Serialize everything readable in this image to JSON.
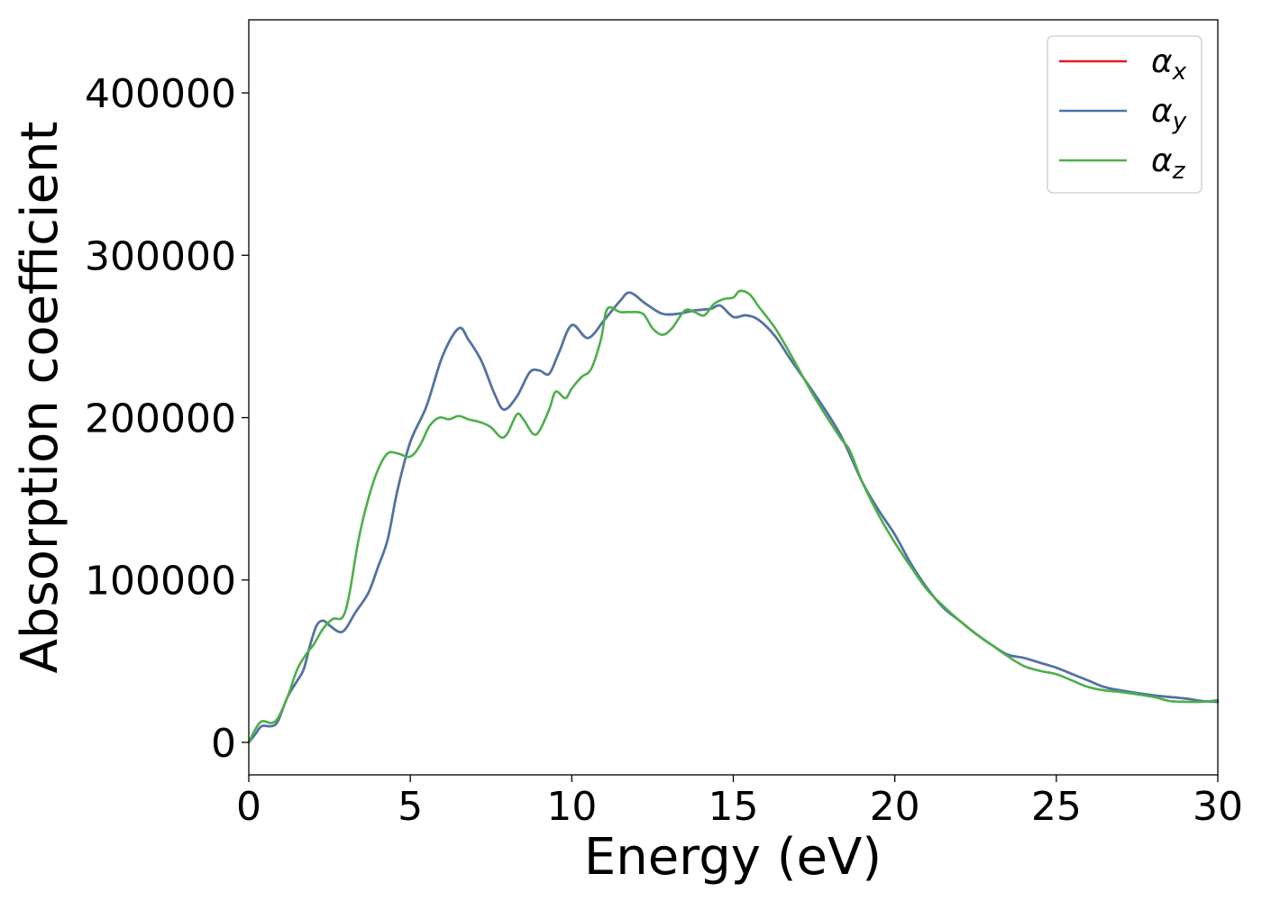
{
  "chart_data": {
    "type": "line",
    "xlabel": "Energy (eV)",
    "ylabel": "Absorption coefficient",
    "xlim": [
      0,
      30
    ],
    "ylim": [
      -20000,
      445000
    ],
    "xticks": [
      0,
      5,
      10,
      15,
      20,
      25,
      30
    ],
    "yticks": [
      0,
      100000,
      200000,
      300000,
      400000
    ],
    "grid": false,
    "legend_position": "top-right",
    "series": [
      {
        "name": "α_x",
        "label_base": "α",
        "label_sub": "x",
        "color": "#e41a1c",
        "points": [
          [
            0,
            0
          ],
          [
            0.2,
            5000
          ],
          [
            0.4,
            10000
          ],
          [
            0.7,
            10000
          ],
          [
            0.9,
            13000
          ],
          [
            1.2,
            28000
          ],
          [
            1.5,
            38000
          ],
          [
            1.7,
            45000
          ],
          [
            1.9,
            60000
          ],
          [
            2.1,
            72000
          ],
          [
            2.3,
            75000
          ],
          [
            2.5,
            72000
          ],
          [
            2.8,
            68000
          ],
          [
            3.0,
            70000
          ],
          [
            3.3,
            80000
          ],
          [
            3.7,
            92000
          ],
          [
            4.0,
            108000
          ],
          [
            4.3,
            125000
          ],
          [
            4.6,
            155000
          ],
          [
            5.0,
            185000
          ],
          [
            5.5,
            207000
          ],
          [
            6.0,
            238000
          ],
          [
            6.5,
            255000
          ],
          [
            6.8,
            248000
          ],
          [
            7.2,
            235000
          ],
          [
            7.6,
            215000
          ],
          [
            7.9,
            205000
          ],
          [
            8.3,
            213000
          ],
          [
            8.7,
            228000
          ],
          [
            9.0,
            229000
          ],
          [
            9.3,
            227000
          ],
          [
            9.6,
            240000
          ],
          [
            10.0,
            257000
          ],
          [
            10.5,
            249000
          ],
          [
            11.0,
            260000
          ],
          [
            11.5,
            272000
          ],
          [
            11.8,
            277000
          ],
          [
            12.3,
            270000
          ],
          [
            12.8,
            264000
          ],
          [
            13.3,
            264000
          ],
          [
            13.8,
            266000
          ],
          [
            14.3,
            267000
          ],
          [
            14.6,
            269000
          ],
          [
            15.0,
            262000
          ],
          [
            15.4,
            263000
          ],
          [
            15.8,
            260000
          ],
          [
            16.3,
            250000
          ],
          [
            16.8,
            235000
          ],
          [
            17.5,
            215000
          ],
          [
            18.3,
            190000
          ],
          [
            19.0,
            160000
          ],
          [
            19.5,
            143000
          ],
          [
            20.0,
            128000
          ],
          [
            20.5,
            110000
          ],
          [
            21.0,
            95000
          ],
          [
            21.5,
            83000
          ],
          [
            22.0,
            75000
          ],
          [
            22.5,
            67000
          ],
          [
            23.0,
            60000
          ],
          [
            23.5,
            54000
          ],
          [
            24.0,
            52000
          ],
          [
            24.5,
            49000
          ],
          [
            25.0,
            46000
          ],
          [
            25.5,
            42000
          ],
          [
            26.0,
            38000
          ],
          [
            26.5,
            34000
          ],
          [
            27.0,
            32000
          ],
          [
            28.0,
            29000
          ],
          [
            29.0,
            27000
          ],
          [
            29.5,
            25500
          ],
          [
            30.0,
            25000
          ]
        ]
      },
      {
        "name": "α_y",
        "label_base": "α",
        "label_sub": "y",
        "color": "#4a76a8",
        "points": [
          [
            0,
            0
          ],
          [
            0.2,
            5000
          ],
          [
            0.4,
            10000
          ],
          [
            0.7,
            10000
          ],
          [
            0.9,
            13000
          ],
          [
            1.2,
            28000
          ],
          [
            1.5,
            38000
          ],
          [
            1.7,
            45000
          ],
          [
            1.9,
            60000
          ],
          [
            2.1,
            72000
          ],
          [
            2.3,
            75000
          ],
          [
            2.5,
            72000
          ],
          [
            2.8,
            68000
          ],
          [
            3.0,
            70000
          ],
          [
            3.3,
            80000
          ],
          [
            3.7,
            92000
          ],
          [
            4.0,
            108000
          ],
          [
            4.3,
            125000
          ],
          [
            4.6,
            155000
          ],
          [
            5.0,
            185000
          ],
          [
            5.5,
            207000
          ],
          [
            6.0,
            238000
          ],
          [
            6.5,
            255000
          ],
          [
            6.8,
            248000
          ],
          [
            7.2,
            235000
          ],
          [
            7.6,
            215000
          ],
          [
            7.9,
            205000
          ],
          [
            8.3,
            213000
          ],
          [
            8.7,
            228000
          ],
          [
            9.0,
            229000
          ],
          [
            9.3,
            227000
          ],
          [
            9.6,
            240000
          ],
          [
            10.0,
            257000
          ],
          [
            10.5,
            249000
          ],
          [
            11.0,
            260000
          ],
          [
            11.5,
            272000
          ],
          [
            11.8,
            277000
          ],
          [
            12.3,
            270000
          ],
          [
            12.8,
            264000
          ],
          [
            13.3,
            264000
          ],
          [
            13.8,
            266000
          ],
          [
            14.3,
            267000
          ],
          [
            14.6,
            269000
          ],
          [
            15.0,
            262000
          ],
          [
            15.4,
            263000
          ],
          [
            15.8,
            260000
          ],
          [
            16.3,
            250000
          ],
          [
            16.8,
            235000
          ],
          [
            17.5,
            215000
          ],
          [
            18.3,
            190000
          ],
          [
            19.0,
            160000
          ],
          [
            19.5,
            143000
          ],
          [
            20.0,
            128000
          ],
          [
            20.5,
            110000
          ],
          [
            21.0,
            95000
          ],
          [
            21.5,
            83000
          ],
          [
            22.0,
            75000
          ],
          [
            22.5,
            67000
          ],
          [
            23.0,
            60000
          ],
          [
            23.5,
            54000
          ],
          [
            24.0,
            52000
          ],
          [
            24.5,
            49000
          ],
          [
            25.0,
            46000
          ],
          [
            25.5,
            42000
          ],
          [
            26.0,
            38000
          ],
          [
            26.5,
            34000
          ],
          [
            27.0,
            32000
          ],
          [
            28.0,
            29000
          ],
          [
            29.0,
            27000
          ],
          [
            29.5,
            25500
          ],
          [
            30.0,
            25000
          ]
        ]
      },
      {
        "name": "α_z",
        "label_base": "α",
        "label_sub": "z",
        "color": "#4daf4a",
        "points": [
          [
            0,
            0
          ],
          [
            0.2,
            8000
          ],
          [
            0.4,
            13000
          ],
          [
            0.7,
            12000
          ],
          [
            0.9,
            15000
          ],
          [
            1.2,
            28000
          ],
          [
            1.5,
            45000
          ],
          [
            1.8,
            55000
          ],
          [
            2.0,
            60000
          ],
          [
            2.3,
            70000
          ],
          [
            2.6,
            76000
          ],
          [
            2.9,
            77000
          ],
          [
            3.1,
            90000
          ],
          [
            3.4,
            125000
          ],
          [
            3.7,
            150000
          ],
          [
            4.0,
            168000
          ],
          [
            4.3,
            178000
          ],
          [
            4.6,
            178000
          ],
          [
            5.0,
            176000
          ],
          [
            5.3,
            183000
          ],
          [
            5.6,
            195000
          ],
          [
            5.9,
            200000
          ],
          [
            6.2,
            199000
          ],
          [
            6.5,
            201000
          ],
          [
            6.8,
            199000
          ],
          [
            7.2,
            197000
          ],
          [
            7.5,
            194000
          ],
          [
            7.8,
            188000
          ],
          [
            8.0,
            190000
          ],
          [
            8.3,
            202000
          ],
          [
            8.5,
            199000
          ],
          [
            8.8,
            190000
          ],
          [
            9.0,
            192000
          ],
          [
            9.3,
            205000
          ],
          [
            9.5,
            216000
          ],
          [
            9.8,
            212000
          ],
          [
            10.0,
            218000
          ],
          [
            10.3,
            225000
          ],
          [
            10.6,
            230000
          ],
          [
            10.9,
            248000
          ],
          [
            11.1,
            267000
          ],
          [
            11.5,
            265000
          ],
          [
            11.8,
            265000
          ],
          [
            12.2,
            264000
          ],
          [
            12.5,
            255000
          ],
          [
            12.8,
            251000
          ],
          [
            13.1,
            255000
          ],
          [
            13.5,
            266000
          ],
          [
            13.8,
            265000
          ],
          [
            14.1,
            263000
          ],
          [
            14.4,
            270000
          ],
          [
            14.7,
            273000
          ],
          [
            15.0,
            274000
          ],
          [
            15.2,
            278000
          ],
          [
            15.5,
            276000
          ],
          [
            15.8,
            268000
          ],
          [
            16.3,
            255000
          ],
          [
            16.8,
            238000
          ],
          [
            17.5,
            213000
          ],
          [
            18.3,
            188000
          ],
          [
            18.6,
            180000
          ],
          [
            19.0,
            160000
          ],
          [
            19.5,
            140000
          ],
          [
            20.0,
            123000
          ],
          [
            20.5,
            108000
          ],
          [
            21.0,
            94000
          ],
          [
            21.5,
            84000
          ],
          [
            22.0,
            75000
          ],
          [
            22.5,
            67000
          ],
          [
            23.0,
            60000
          ],
          [
            23.5,
            53000
          ],
          [
            24.0,
            47000
          ],
          [
            24.5,
            44000
          ],
          [
            25.0,
            42000
          ],
          [
            25.5,
            38000
          ],
          [
            26.0,
            34000
          ],
          [
            26.5,
            32000
          ],
          [
            27.0,
            31000
          ],
          [
            28.0,
            28000
          ],
          [
            28.5,
            25500
          ],
          [
            29.0,
            25000
          ],
          [
            29.5,
            25000
          ],
          [
            30.0,
            26000
          ]
        ]
      }
    ]
  }
}
